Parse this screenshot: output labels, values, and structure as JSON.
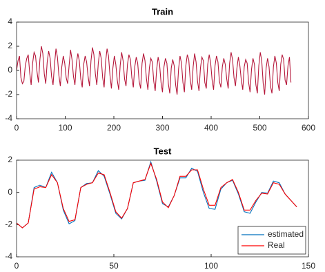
{
  "chart_data": [
    {
      "type": "line",
      "title": "Train",
      "x": [
        0,
        3,
        6,
        9,
        12,
        15,
        18,
        21,
        24,
        27,
        30,
        33,
        36,
        39,
        42,
        45,
        48,
        51,
        54,
        57,
        60,
        63,
        66,
        69,
        72,
        75,
        78,
        81,
        84,
        87,
        90,
        93,
        96,
        99,
        102,
        105,
        108,
        111,
        114,
        117,
        120,
        123,
        126,
        129,
        132,
        135,
        138,
        141,
        144,
        147,
        150,
        153,
        156,
        159,
        162,
        165,
        168,
        171,
        174,
        177,
        180,
        183,
        186,
        189,
        192,
        195,
        198,
        201,
        204,
        207,
        210,
        213,
        216,
        219,
        222,
        225,
        228,
        231,
        234,
        237,
        240,
        243,
        246,
        249,
        252,
        255,
        258,
        261,
        264,
        267,
        270,
        273,
        276,
        279,
        282,
        285,
        288,
        291,
        294,
        297,
        300,
        303,
        306,
        309,
        312,
        315,
        318,
        321,
        324,
        327,
        330,
        333,
        336,
        339,
        342,
        345,
        348,
        351,
        354,
        357,
        360,
        363,
        366,
        369,
        372,
        375,
        378,
        381,
        384,
        387,
        390,
        393,
        396,
        399,
        402,
        405,
        408,
        411,
        414,
        417,
        420,
        423,
        426,
        429,
        432,
        435,
        438,
        441,
        444,
        447,
        450,
        453,
        456,
        459,
        462,
        465,
        468,
        471,
        474,
        477,
        480,
        483,
        486,
        489,
        492,
        495,
        498,
        501,
        504,
        507,
        510,
        513,
        516,
        519,
        522,
        525,
        528,
        531,
        534,
        537,
        540,
        543,
        546,
        549,
        552,
        555,
        558,
        561,
        564
      ],
      "series": [
        {
          "color": "#b5173a",
          "values": [
            0.0,
            0.8,
            1.2,
            -0.6,
            -1.1,
            -0.9,
            0.4,
            1.0,
            1.3,
            -0.2,
            -1.2,
            0.6,
            1.5,
            1.2,
            -0.1,
            -1.0,
            0.9,
            2.0,
            1.4,
            -0.3,
            -1.1,
            0.7,
            1.6,
            1.0,
            -0.5,
            -1.2,
            0.5,
            1.8,
            1.1,
            -0.4,
            -1.3,
            0.3,
            1.2,
            0.6,
            -0.6,
            -1.1,
            0.4,
            1.7,
            0.9,
            -0.5,
            -1.2,
            0.6,
            1.4,
            0.8,
            -0.7,
            -1.4,
            0.5,
            1.2,
            0.7,
            -0.5,
            -1.3,
            0.8,
            1.9,
            1.3,
            -0.3,
            -1.2,
            0.6,
            1.6,
            1.0,
            -0.6,
            -1.4,
            0.7,
            1.8,
            1.2,
            -0.4,
            -1.5,
            0.2,
            1.2,
            0.5,
            -0.8,
            -1.6,
            0.4,
            1.5,
            0.8,
            -0.7,
            -1.3,
            0.5,
            1.3,
            0.9,
            -0.6,
            -1.4,
            0.3,
            1.1,
            0.6,
            -0.9,
            -1.5,
            0.6,
            1.4,
            0.8,
            -0.7,
            -1.6,
            0.2,
            1.0,
            0.7,
            -0.9,
            -1.7,
            0.1,
            1.1,
            0.5,
            -1.0,
            -1.8,
            0.3,
            1.0,
            0.6,
            -1.1,
            -1.9,
            0.2,
            0.9,
            0.4,
            -1.2,
            -2.0,
            0.1,
            1.2,
            0.6,
            -1.0,
            -1.8,
            0.4,
            1.3,
            0.9,
            -0.8,
            -1.6,
            0.3,
            1.4,
            0.7,
            -0.9,
            -1.7,
            0.2,
            1.1,
            0.8,
            -1.0,
            -1.5,
            0.5,
            1.3,
            0.6,
            -0.8,
            -1.6,
            0.4,
            1.2,
            0.7,
            -0.9,
            -1.4,
            0.3,
            1.0,
            0.5,
            -0.7,
            -1.5,
            0.6,
            1.5,
            0.9,
            -0.6,
            -1.3,
            0.2,
            1.1,
            0.4,
            -0.8,
            -1.6,
            0.3,
            0.9,
            0.6,
            -1.0,
            -1.8,
            0.1,
            1.0,
            0.5,
            -1.2,
            -1.9,
            0.4,
            1.5,
            0.8,
            -1.1,
            -2.0,
            0.2,
            1.0,
            0.3,
            -1.3,
            -1.9,
            0.3,
            1.2,
            0.6,
            -1.0,
            -1.7,
            0.5,
            1.3,
            0.9,
            -0.8,
            -1.2,
            0.4,
            1.1,
            -1.0
          ]
        }
      ],
      "xlim": [
        0,
        600
      ],
      "xticks": [
        0,
        100,
        200,
        300,
        400,
        500,
        600
      ],
      "ylim": [
        -4,
        4
      ],
      "yticks": [
        -4,
        -2,
        0,
        2,
        4
      ]
    },
    {
      "type": "line",
      "title": "Test",
      "x": [
        0,
        3,
        6,
        9,
        12,
        15,
        18,
        21,
        24,
        27,
        30,
        33,
        36,
        39,
        42,
        45,
        48,
        51,
        54,
        57,
        60,
        63,
        66,
        69,
        72,
        75,
        78,
        81,
        84,
        87,
        90,
        93,
        96,
        99,
        102,
        105,
        108,
        111,
        114,
        117,
        120,
        123,
        126,
        129,
        132,
        135,
        138,
        141,
        144
      ],
      "series": [
        {
          "name": "estimated",
          "color": "#0072bd",
          "values": [
            -1.9,
            -2.2,
            -1.9,
            0.3,
            0.45,
            0.3,
            1.25,
            0.6,
            -1.1,
            -1.95,
            -1.75,
            0.3,
            0.55,
            0.6,
            1.35,
            1.0,
            -0.1,
            -1.3,
            -1.65,
            -1.0,
            0.6,
            0.7,
            0.75,
            1.9,
            0.7,
            -0.7,
            -0.9,
            -0.2,
            0.9,
            0.9,
            1.5,
            1.3,
            0.0,
            -1.0,
            -1.05,
            0.2,
            0.6,
            0.75,
            -0.1,
            -1.2,
            -1.3,
            -0.6,
            0.0,
            -0.05,
            0.7,
            0.6,
            -0.1,
            -0.5,
            -0.9
          ]
        },
        {
          "name": "Real",
          "color": "#ff0000",
          "values": [
            -1.9,
            -2.2,
            -1.9,
            0.2,
            0.35,
            0.3,
            1.1,
            0.6,
            -1.0,
            -1.8,
            -1.7,
            0.3,
            0.5,
            0.6,
            1.2,
            1.1,
            0.0,
            -1.2,
            -1.6,
            -1.0,
            0.6,
            0.7,
            0.8,
            1.8,
            0.8,
            -0.6,
            -0.95,
            -0.2,
            1.0,
            1.0,
            1.4,
            1.4,
            0.2,
            -0.8,
            -0.8,
            0.3,
            0.6,
            0.8,
            0.0,
            -1.1,
            -1.1,
            -0.5,
            -0.05,
            -0.1,
            0.6,
            0.5,
            -0.1,
            -0.5,
            -0.9
          ]
        }
      ],
      "xlim": [
        0,
        150
      ],
      "xticks": [
        0,
        50,
        100,
        150
      ],
      "ylim": [
        -4,
        2
      ],
      "yticks": [
        -4,
        -2,
        0,
        2
      ],
      "legend": "southeast"
    }
  ]
}
